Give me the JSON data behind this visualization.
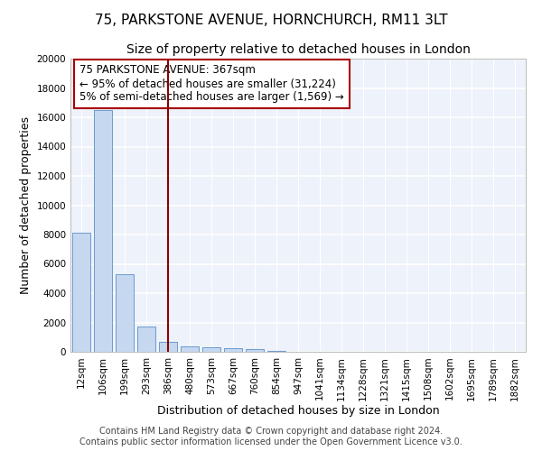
{
  "title_line1": "75, PARKSTONE AVENUE, HORNCHURCH, RM11 3LT",
  "title_line2": "Size of property relative to detached houses in London",
  "xlabel": "Distribution of detached houses by size in London",
  "ylabel": "Number of detached properties",
  "bar_color": "#c5d8f0",
  "bar_edge_color": "#5b8fc9",
  "background_color": "#eef2fa",
  "grid_color": "#ffffff",
  "annotation_box_color": "#aa0000",
  "vline_color": "#8b0000",
  "categories": [
    "12sqm",
    "106sqm",
    "199sqm",
    "293sqm",
    "386sqm",
    "480sqm",
    "573sqm",
    "667sqm",
    "760sqm",
    "854sqm",
    "947sqm",
    "1041sqm",
    "1134sqm",
    "1228sqm",
    "1321sqm",
    "1415sqm",
    "1508sqm",
    "1602sqm",
    "1695sqm",
    "1789sqm",
    "1882sqm"
  ],
  "values": [
    8100,
    16500,
    5300,
    1750,
    700,
    380,
    290,
    230,
    210,
    50,
    0,
    0,
    0,
    0,
    0,
    0,
    0,
    0,
    0,
    0,
    0
  ],
  "ylim": [
    0,
    20000
  ],
  "yticks": [
    0,
    2000,
    4000,
    6000,
    8000,
    10000,
    12000,
    14000,
    16000,
    18000,
    20000
  ],
  "vline_x": 4.0,
  "annotation_text": "75 PARKSTONE AVENUE: 367sqm\n← 95% of detached houses are smaller (31,224)\n5% of semi-detached houses are larger (1,569) →",
  "footnote": "Contains HM Land Registry data © Crown copyright and database right 2024.\nContains public sector information licensed under the Open Government Licence v3.0.",
  "title_fontsize": 11,
  "subtitle_fontsize": 10,
  "axis_label_fontsize": 9,
  "tick_fontsize": 7.5,
  "annotation_fontsize": 8.5,
  "footnote_fontsize": 7
}
